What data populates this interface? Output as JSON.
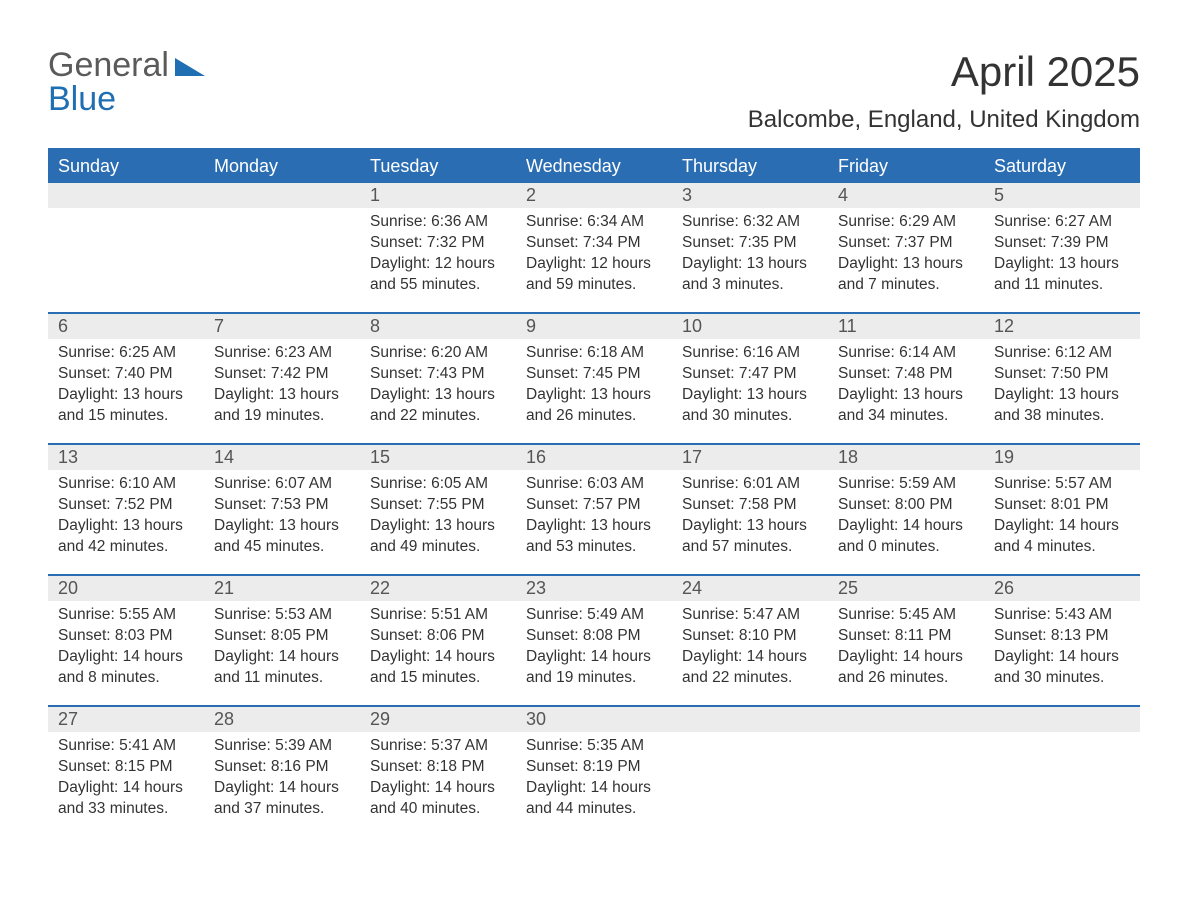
{
  "logo": {
    "top": "General",
    "bottom": "Blue",
    "tri_color": "#1f6fb2"
  },
  "title": "April 2025",
  "location": "Balcombe, England, United Kingdom",
  "colors": {
    "header_bg": "#2a6db3",
    "header_text": "#ffffff",
    "daynum_bg": "#ececec",
    "divider": "#2a6db3",
    "body_text": "#333333"
  },
  "day_names": [
    "Sunday",
    "Monday",
    "Tuesday",
    "Wednesday",
    "Thursday",
    "Friday",
    "Saturday"
  ],
  "weeks": [
    [
      {
        "num": "",
        "sunrise": "",
        "sunset": "",
        "daylight": ""
      },
      {
        "num": "",
        "sunrise": "",
        "sunset": "",
        "daylight": ""
      },
      {
        "num": "1",
        "sunrise": "Sunrise: 6:36 AM",
        "sunset": "Sunset: 7:32 PM",
        "daylight": "Daylight: 12 hours and 55 minutes."
      },
      {
        "num": "2",
        "sunrise": "Sunrise: 6:34 AM",
        "sunset": "Sunset: 7:34 PM",
        "daylight": "Daylight: 12 hours and 59 minutes."
      },
      {
        "num": "3",
        "sunrise": "Sunrise: 6:32 AM",
        "sunset": "Sunset: 7:35 PM",
        "daylight": "Daylight: 13 hours and 3 minutes."
      },
      {
        "num": "4",
        "sunrise": "Sunrise: 6:29 AM",
        "sunset": "Sunset: 7:37 PM",
        "daylight": "Daylight: 13 hours and 7 minutes."
      },
      {
        "num": "5",
        "sunrise": "Sunrise: 6:27 AM",
        "sunset": "Sunset: 7:39 PM",
        "daylight": "Daylight: 13 hours and 11 minutes."
      }
    ],
    [
      {
        "num": "6",
        "sunrise": "Sunrise: 6:25 AM",
        "sunset": "Sunset: 7:40 PM",
        "daylight": "Daylight: 13 hours and 15 minutes."
      },
      {
        "num": "7",
        "sunrise": "Sunrise: 6:23 AM",
        "sunset": "Sunset: 7:42 PM",
        "daylight": "Daylight: 13 hours and 19 minutes."
      },
      {
        "num": "8",
        "sunrise": "Sunrise: 6:20 AM",
        "sunset": "Sunset: 7:43 PM",
        "daylight": "Daylight: 13 hours and 22 minutes."
      },
      {
        "num": "9",
        "sunrise": "Sunrise: 6:18 AM",
        "sunset": "Sunset: 7:45 PM",
        "daylight": "Daylight: 13 hours and 26 minutes."
      },
      {
        "num": "10",
        "sunrise": "Sunrise: 6:16 AM",
        "sunset": "Sunset: 7:47 PM",
        "daylight": "Daylight: 13 hours and 30 minutes."
      },
      {
        "num": "11",
        "sunrise": "Sunrise: 6:14 AM",
        "sunset": "Sunset: 7:48 PM",
        "daylight": "Daylight: 13 hours and 34 minutes."
      },
      {
        "num": "12",
        "sunrise": "Sunrise: 6:12 AM",
        "sunset": "Sunset: 7:50 PM",
        "daylight": "Daylight: 13 hours and 38 minutes."
      }
    ],
    [
      {
        "num": "13",
        "sunrise": "Sunrise: 6:10 AM",
        "sunset": "Sunset: 7:52 PM",
        "daylight": "Daylight: 13 hours and 42 minutes."
      },
      {
        "num": "14",
        "sunrise": "Sunrise: 6:07 AM",
        "sunset": "Sunset: 7:53 PM",
        "daylight": "Daylight: 13 hours and 45 minutes."
      },
      {
        "num": "15",
        "sunrise": "Sunrise: 6:05 AM",
        "sunset": "Sunset: 7:55 PM",
        "daylight": "Daylight: 13 hours and 49 minutes."
      },
      {
        "num": "16",
        "sunrise": "Sunrise: 6:03 AM",
        "sunset": "Sunset: 7:57 PM",
        "daylight": "Daylight: 13 hours and 53 minutes."
      },
      {
        "num": "17",
        "sunrise": "Sunrise: 6:01 AM",
        "sunset": "Sunset: 7:58 PM",
        "daylight": "Daylight: 13 hours and 57 minutes."
      },
      {
        "num": "18",
        "sunrise": "Sunrise: 5:59 AM",
        "sunset": "Sunset: 8:00 PM",
        "daylight": "Daylight: 14 hours and 0 minutes."
      },
      {
        "num": "19",
        "sunrise": "Sunrise: 5:57 AM",
        "sunset": "Sunset: 8:01 PM",
        "daylight": "Daylight: 14 hours and 4 minutes."
      }
    ],
    [
      {
        "num": "20",
        "sunrise": "Sunrise: 5:55 AM",
        "sunset": "Sunset: 8:03 PM",
        "daylight": "Daylight: 14 hours and 8 minutes."
      },
      {
        "num": "21",
        "sunrise": "Sunrise: 5:53 AM",
        "sunset": "Sunset: 8:05 PM",
        "daylight": "Daylight: 14 hours and 11 minutes."
      },
      {
        "num": "22",
        "sunrise": "Sunrise: 5:51 AM",
        "sunset": "Sunset: 8:06 PM",
        "daylight": "Daylight: 14 hours and 15 minutes."
      },
      {
        "num": "23",
        "sunrise": "Sunrise: 5:49 AM",
        "sunset": "Sunset: 8:08 PM",
        "daylight": "Daylight: 14 hours and 19 minutes."
      },
      {
        "num": "24",
        "sunrise": "Sunrise: 5:47 AM",
        "sunset": "Sunset: 8:10 PM",
        "daylight": "Daylight: 14 hours and 22 minutes."
      },
      {
        "num": "25",
        "sunrise": "Sunrise: 5:45 AM",
        "sunset": "Sunset: 8:11 PM",
        "daylight": "Daylight: 14 hours and 26 minutes."
      },
      {
        "num": "26",
        "sunrise": "Sunrise: 5:43 AM",
        "sunset": "Sunset: 8:13 PM",
        "daylight": "Daylight: 14 hours and 30 minutes."
      }
    ],
    [
      {
        "num": "27",
        "sunrise": "Sunrise: 5:41 AM",
        "sunset": "Sunset: 8:15 PM",
        "daylight": "Daylight: 14 hours and 33 minutes."
      },
      {
        "num": "28",
        "sunrise": "Sunrise: 5:39 AM",
        "sunset": "Sunset: 8:16 PM",
        "daylight": "Daylight: 14 hours and 37 minutes."
      },
      {
        "num": "29",
        "sunrise": "Sunrise: 5:37 AM",
        "sunset": "Sunset: 8:18 PM",
        "daylight": "Daylight: 14 hours and 40 minutes."
      },
      {
        "num": "30",
        "sunrise": "Sunrise: 5:35 AM",
        "sunset": "Sunset: 8:19 PM",
        "daylight": "Daylight: 14 hours and 44 minutes."
      },
      {
        "num": "",
        "sunrise": "",
        "sunset": "",
        "daylight": ""
      },
      {
        "num": "",
        "sunrise": "",
        "sunset": "",
        "daylight": ""
      },
      {
        "num": "",
        "sunrise": "",
        "sunset": "",
        "daylight": ""
      }
    ]
  ]
}
